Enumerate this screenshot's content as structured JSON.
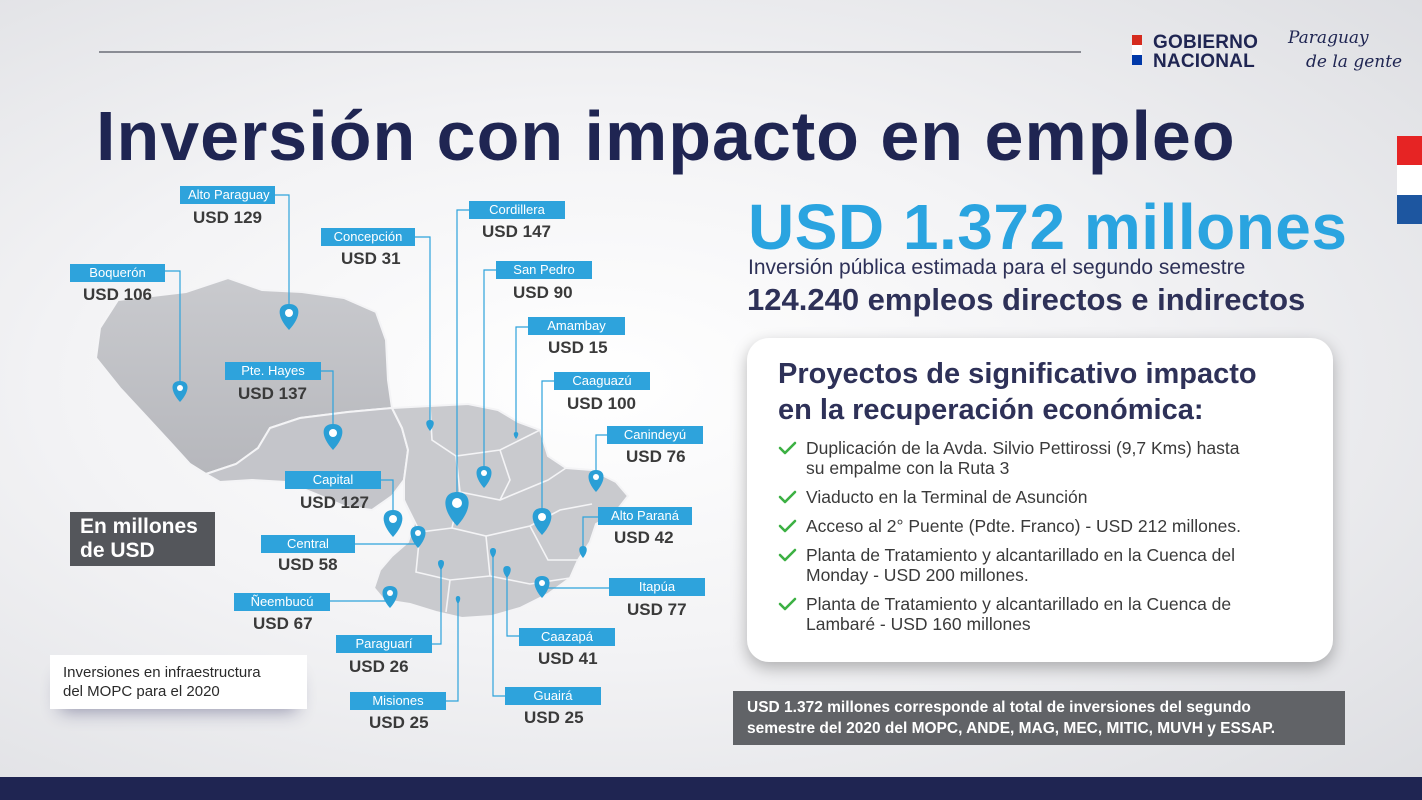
{
  "header": {
    "gov_logo_text": "GOBIERNO\nNACIONAL",
    "slogan_line1": "Paraguay",
    "slogan_line2": "de la gente",
    "title": "Inversión con impacto en empleo"
  },
  "colors": {
    "navy": "#1f2552",
    "accent_blue": "#2aa4e0",
    "tag_blue": "#2ea3dc",
    "flag_red": "#d52b1e",
    "flag_white": "#ffffff",
    "flag_blue": "#0038a8",
    "pin_blue": "#2a9fd6",
    "check_green": "#3cb043"
  },
  "map": {
    "unit_line1": "En millones",
    "unit_line2": "de USD",
    "caption_line1": "Inversiones en infraestructura",
    "caption_line2": "del MOPC para el 2020",
    "regions": [
      {
        "name": "Alto Paraguay",
        "value": "USD 129"
      },
      {
        "name": "Concepción",
        "value": "USD 31"
      },
      {
        "name": "Cordillera",
        "value": "USD 147"
      },
      {
        "name": "Boquerón",
        "value": "USD 106"
      },
      {
        "name": "San Pedro",
        "value": "USD 90"
      },
      {
        "name": "Amambay",
        "value": "USD 15"
      },
      {
        "name": "Pte. Hayes",
        "value": "USD 137"
      },
      {
        "name": "Caaguazú",
        "value": "USD 100"
      },
      {
        "name": "Canindeyú",
        "value": "USD 76"
      },
      {
        "name": "Capital",
        "value": "USD 127"
      },
      {
        "name": "Alto Paraná",
        "value": "USD 42"
      },
      {
        "name": "Central",
        "value": "USD 58"
      },
      {
        "name": "Itapúa",
        "value": "USD 77"
      },
      {
        "name": "Ñeembucú",
        "value": "USD 67"
      },
      {
        "name": "Paraguarí",
        "value": "USD 26"
      },
      {
        "name": "Caazapá",
        "value": "USD 41"
      },
      {
        "name": "Misiones",
        "value": "USD 25"
      },
      {
        "name": "Guairá",
        "value": "USD 25"
      }
    ]
  },
  "summary": {
    "amount": "USD 1.372 millones",
    "description": "Inversión pública estimada para el segundo semestre",
    "jobs": "124.240 empleos directos e indirectos"
  },
  "projects": {
    "title_line1": "Proyectos de significativo impacto",
    "title_line2": "en la recuperación económica:",
    "items": [
      {
        "line1": "Duplicación de la Avda. Silvio Pettirossi  (9,7 Kms) hasta",
        "line2": "su empalme con la Ruta 3"
      },
      {
        "line1": "Viaducto en la Terminal de Asunción",
        "line2": ""
      },
      {
        "line1": "Acceso al 2° Puente (Pdte. Franco) - USD 212 millones.",
        "line2": ""
      },
      {
        "line1": "Planta de Tratamiento y alcantarillado en la Cuenca del",
        "line2": "Monday - USD 200 millones."
      },
      {
        "line1": "Planta de Tratamiento y alcantarillado en la Cuenca de",
        "line2": "Lambaré - USD 160 millones"
      }
    ]
  },
  "footnote": {
    "line1": "USD 1.372 millones corresponde al total de inversiones del segundo",
    "line2": "semestre del 2020 del MOPC, ANDE, MAG, MEC, MITIC, MUVH y ESSAP."
  }
}
